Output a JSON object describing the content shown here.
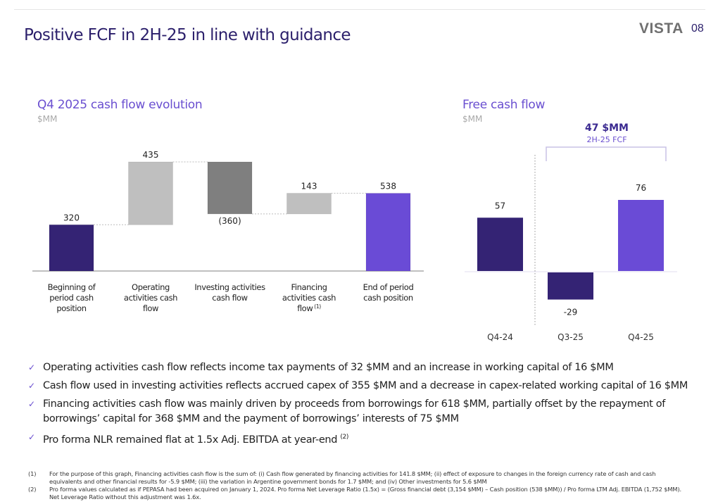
{
  "header": {
    "title": "Positive FCF in 2H-25 in line with guidance",
    "logo": "VISTA",
    "page_number": "08"
  },
  "colors": {
    "dark_purple": "#342374",
    "light_purple": "#6a4bd6",
    "light_gray": "#bfbfbf",
    "dark_gray": "#7f7f7f",
    "title": "#2b1f6b",
    "accent": "#6a4fd0"
  },
  "chart_data": [
    {
      "type": "bar",
      "subtype": "waterfall",
      "title": "Q4 2025 cash flow evolution",
      "unit": "$MM",
      "categories": [
        "Beginning of period cash position",
        "Operating activities cash flow",
        "Investing activities cash flow",
        "Financing activities cash flow (1)",
        "End of period cash position"
      ],
      "category_lines": [
        [
          "Beginning of",
          "period cash",
          "position"
        ],
        [
          "Operating",
          "activities cash",
          "flow"
        ],
        [
          "Investing activities",
          "cash flow"
        ],
        [
          "Financing",
          "activities cash",
          "flow"
        ],
        [
          "End of period",
          "cash position"
        ]
      ],
      "category_superscripts": [
        "",
        "",
        "",
        "(1)",
        ""
      ],
      "values": [
        320,
        435,
        -360,
        143,
        538
      ],
      "bar_kinds": [
        "total",
        "delta",
        "delta",
        "delta",
        "total"
      ],
      "labels": [
        "320",
        "435",
        "(360)",
        "143",
        "538"
      ],
      "bar_colors": [
        "#342374",
        "#bfbfbf",
        "#7f7f7f",
        "#bfbfbf",
        "#6a4bd6"
      ],
      "ylim": [
        0,
        760
      ],
      "grid": false,
      "legend": "none"
    },
    {
      "type": "bar",
      "title": "Free cash flow",
      "unit": "$MM",
      "categories": [
        "Q4-24",
        "Q3-25",
        "Q4-25"
      ],
      "values": [
        57,
        -29,
        76
      ],
      "labels": [
        "57",
        "-29",
        "76"
      ],
      "bar_colors": [
        "#342374",
        "#342374",
        "#6a4bd6"
      ],
      "ylim": [
        -40,
        100
      ],
      "annotation": {
        "value": "47 $MM",
        "label": "2H-25 FCF",
        "spans": [
          "Q3-25",
          "Q4-25"
        ]
      },
      "grid": false,
      "legend": "none"
    }
  ],
  "bullets": [
    {
      "text": "Operating activities cash flow reflects income tax payments of 32 $MM and an increase in working capital of 16 $MM",
      "sup": ""
    },
    {
      "text": "Cash flow used in investing activities reflects accrued capex of 355 $MM and a decrease in capex-related working capital of 16 $MM",
      "sup": ""
    },
    {
      "text": "Financing activities cash flow was mainly driven by proceeds from borrowings for 618 $MM, partially offset by the repayment of borrowings’ capital for 368 $MM and the payment of borrowings’ interests of 75 $MM",
      "sup": ""
    },
    {
      "text": "Pro forma NLR remained flat at 1.5x Adj. EBITDA at year-end ",
      "sup": "(2)"
    }
  ],
  "footnotes": [
    {
      "num": "(1)",
      "text": "For the purpose of this graph, Financing activities cash flow is the sum of: (i) Cash flow generated by financing activities for 141.8 $MM; (ii) effect of exposure to changes in the foreign currency rate of cash and cash equivalents and other financial results for -5.9 $MM; (iii) the variation in Argentine government bonds for 1.7 $MM; and (iv) Other investments for 5.6 $MM"
    },
    {
      "num": "(2)",
      "text": "Pro forma values calculated as if PEPASA had been acquired on January 1, 2024. Pro forma Net Leverage Ratio (1.5x) = (Gross financial debt (3,154 $MM) – Cash position (538 $MM)) / Pro forma LTM Adj. EBITDA (1,752 $MM). Net Leverage Ratio without this adjustment was 1.6x."
    }
  ]
}
